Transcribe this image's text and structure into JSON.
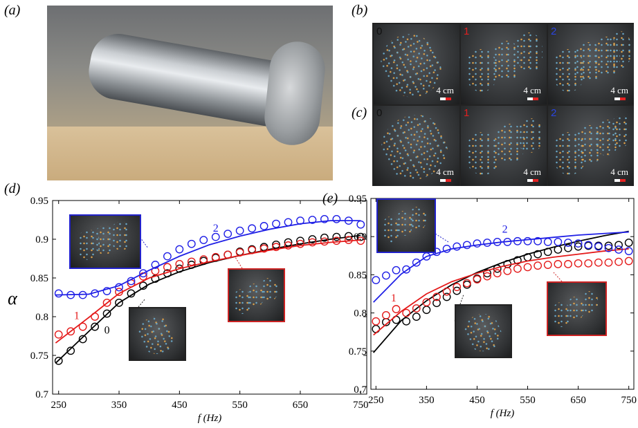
{
  "panels": {
    "a": "(a)",
    "b": "(b)",
    "c": "(c)",
    "d": "(d)",
    "e": "(e)"
  },
  "thumbnails": {
    "row_b": [
      {
        "num": "0",
        "num_color": "#111111",
        "scale": "4 cm"
      },
      {
        "num": "1",
        "num_color": "#e02020",
        "scale": "4 cm"
      },
      {
        "num": "2",
        "num_color": "#2b45e0",
        "scale": "4 cm"
      }
    ],
    "row_c": [
      {
        "num": "0",
        "num_color": "#111111",
        "scale": "4 cm"
      },
      {
        "num": "1",
        "num_color": "#e02020",
        "scale": "4 cm"
      },
      {
        "num": "2",
        "num_color": "#2b45e0",
        "scale": "4 cm"
      }
    ]
  },
  "colors": {
    "black": "#000000",
    "red": "#e41a1a",
    "blue": "#1f1fe6"
  },
  "chart_data": [
    {
      "id": "d",
      "type": "scatter",
      "xlabel": "f (Hz)",
      "ylabel": "α",
      "xlim": [
        240,
        760
      ],
      "ylim": [
        0.7,
        0.95
      ],
      "xticks": [
        250,
        350,
        450,
        550,
        650,
        750
      ],
      "yticks": [
        0.7,
        0.75,
        0.8,
        0.85,
        0.9,
        0.95
      ],
      "xticklabels": [
        "250",
        "350",
        "450",
        "550",
        "650",
        "750"
      ],
      "yticklabels": [
        "0.7",
        "0.75",
        "0.8",
        "0.85",
        "0.9",
        "0.95"
      ],
      "series": [
        {
          "name": "0",
          "color": "#000000",
          "markers": {
            "x": [
              250,
              270,
              290,
              310,
              330,
              350,
              370,
              390,
              410,
              430,
              450,
              470,
              490,
              510,
              530,
              550,
              570,
              590,
              610,
              630,
              650,
              670,
              690,
              710,
              730,
              750
            ],
            "y": [
              0.743,
              0.756,
              0.771,
              0.787,
              0.804,
              0.818,
              0.83,
              0.84,
              0.849,
              0.856,
              0.862,
              0.867,
              0.872,
              0.876,
              0.88,
              0.884,
              0.887,
              0.89,
              0.893,
              0.896,
              0.898,
              0.9,
              0.902,
              0.903,
              0.904,
              0.903
            ]
          },
          "fit": {
            "x": [
              245,
              300,
              350,
              400,
              450,
              500,
              550,
              600,
              650,
              700,
              750
            ],
            "y": [
              0.74,
              0.781,
              0.818,
              0.842,
              0.858,
              0.87,
              0.879,
              0.887,
              0.894,
              0.9,
              0.905
            ]
          }
        },
        {
          "name": "1",
          "color": "#e41a1a",
          "markers": {
            "x": [
              250,
              270,
              290,
              310,
              330,
              350,
              370,
              390,
              410,
              430,
              450,
              470,
              490,
              510,
              530,
              550,
              570,
              590,
              610,
              630,
              650,
              670,
              690,
              710,
              730,
              750
            ],
            "y": [
              0.777,
              0.781,
              0.787,
              0.8,
              0.818,
              0.832,
              0.843,
              0.852,
              0.859,
              0.864,
              0.868,
              0.871,
              0.874,
              0.877,
              0.88,
              0.883,
              0.886,
              0.888,
              0.89,
              0.892,
              0.894,
              0.896,
              0.897,
              0.898,
              0.899,
              0.898
            ]
          },
          "fit": {
            "x": [
              245,
              300,
              350,
              400,
              450,
              500,
              550,
              600,
              650,
              700,
              750
            ],
            "y": [
              0.766,
              0.799,
              0.83,
              0.85,
              0.862,
              0.871,
              0.879,
              0.886,
              0.892,
              0.896,
              0.899
            ]
          }
        },
        {
          "name": "2",
          "color": "#1f1fe6",
          "markers": {
            "x": [
              250,
              270,
              290,
              310,
              330,
              350,
              370,
              390,
              410,
              430,
              450,
              470,
              490,
              510,
              530,
              550,
              570,
              590,
              610,
              630,
              650,
              670,
              690,
              710,
              730,
              750
            ],
            "y": [
              0.83,
              0.828,
              0.828,
              0.83,
              0.833,
              0.838,
              0.846,
              0.856,
              0.867,
              0.878,
              0.887,
              0.894,
              0.899,
              0.903,
              0.907,
              0.911,
              0.914,
              0.917,
              0.92,
              0.922,
              0.924,
              0.925,
              0.926,
              0.926,
              0.924,
              0.919
            ]
          },
          "fit": {
            "x": [
              245,
              300,
              350,
              400,
              450,
              500,
              550,
              600,
              650,
              700,
              750
            ],
            "y": [
              0.828,
              0.829,
              0.84,
              0.86,
              0.878,
              0.893,
              0.904,
              0.913,
              0.92,
              0.924,
              0.924
            ]
          }
        }
      ],
      "annotations": [
        {
          "text": "2",
          "x": 510,
          "y": 0.91,
          "color": "#1f1fe6"
        },
        {
          "text": "1",
          "x": 280,
          "y": 0.797,
          "color": "#e41a1a"
        },
        {
          "text": "0",
          "x": 330,
          "y": 0.778,
          "color": "#000000"
        }
      ]
    },
    {
      "id": "e",
      "type": "scatter",
      "xlabel": "f (Hz)",
      "ylabel": "",
      "xlim": [
        240,
        760
      ],
      "ylim": [
        0.7,
        0.95
      ],
      "xticks": [
        250,
        350,
        450,
        550,
        650,
        750
      ],
      "yticks": [
        0.7,
        0.75,
        0.8,
        0.85,
        0.9,
        0.95
      ],
      "xticklabels": [
        "250",
        "350",
        "450",
        "550",
        "650",
        "750"
      ],
      "yticklabels": [
        "0.7",
        "0.75",
        "0.8",
        "0.85",
        "0.9",
        "0.95"
      ],
      "series": [
        {
          "name": "0",
          "color": "#000000",
          "markers": {
            "x": [
              250,
              270,
              290,
              310,
              330,
              350,
              370,
              390,
              410,
              430,
              450,
              470,
              490,
              510,
              530,
              550,
              570,
              590,
              610,
              630,
              650,
              670,
              690,
              710,
              730,
              750
            ],
            "y": [
              0.779,
              0.788,
              0.791,
              0.789,
              0.795,
              0.804,
              0.813,
              0.821,
              0.829,
              0.837,
              0.845,
              0.852,
              0.858,
              0.864,
              0.869,
              0.873,
              0.877,
              0.88,
              0.883,
              0.885,
              0.887,
              0.888,
              0.888,
              0.888,
              0.889,
              0.892
            ]
          },
          "fit": {
            "x": [
              245,
              300,
              350,
              400,
              450,
              500,
              550,
              600,
              650,
              700,
              750
            ],
            "y": [
              0.748,
              0.79,
              0.816,
              0.837,
              0.853,
              0.866,
              0.877,
              0.886,
              0.894,
              0.901,
              0.907
            ]
          }
        },
        {
          "name": "1",
          "color": "#e41a1a",
          "markers": {
            "x": [
              250,
              270,
              290,
              310,
              330,
              350,
              370,
              390,
              410,
              430,
              450,
              470,
              490,
              510,
              530,
              550,
              570,
              590,
              610,
              630,
              650,
              670,
              690,
              710,
              730,
              750
            ],
            "y": [
              0.789,
              0.797,
              0.805,
              0.8,
              0.806,
              0.814,
              0.821,
              0.828,
              0.834,
              0.839,
              0.844,
              0.848,
              0.852,
              0.855,
              0.858,
              0.86,
              0.862,
              0.863,
              0.864,
              0.864,
              0.865,
              0.865,
              0.866,
              0.866,
              0.867,
              0.868
            ]
          },
          "fit": {
            "x": [
              245,
              300,
              350,
              400,
              450,
              500,
              550,
              600,
              650,
              700,
              750
            ],
            "y": [
              0.771,
              0.802,
              0.825,
              0.841,
              0.852,
              0.861,
              0.868,
              0.873,
              0.877,
              0.881,
              0.884
            ]
          }
        },
        {
          "name": "2",
          "color": "#1f1fe6",
          "markers": {
            "x": [
              250,
              270,
              290,
              310,
              330,
              350,
              370,
              390,
              410,
              430,
              450,
              470,
              490,
              510,
              530,
              550,
              570,
              590,
              610,
              630,
              650,
              670,
              690,
              710,
              730,
              750
            ],
            "y": [
              0.843,
              0.849,
              0.856,
              0.857,
              0.866,
              0.874,
              0.88,
              0.884,
              0.887,
              0.889,
              0.891,
              0.892,
              0.893,
              0.893,
              0.894,
              0.894,
              0.894,
              0.893,
              0.893,
              0.892,
              0.891,
              0.889,
              0.887,
              0.885,
              0.883,
              0.881
            ]
          },
          "fit": {
            "x": [
              245,
              300,
              350,
              400,
              450,
              500,
              550,
              600,
              650,
              700,
              750
            ],
            "y": [
              0.814,
              0.851,
              0.874,
              0.884,
              0.889,
              0.893,
              0.896,
              0.899,
              0.902,
              0.904,
              0.906
            ]
          }
        }
      ],
      "annotations": [
        {
          "text": "2",
          "x": 505,
          "y": 0.905,
          "color": "#1f1fe6"
        },
        {
          "text": "1",
          "x": 285,
          "y": 0.815,
          "color": "#e41a1a"
        },
        {
          "text": "0",
          "x": 410,
          "y": 0.785,
          "color": "#000000"
        }
      ]
    }
  ]
}
